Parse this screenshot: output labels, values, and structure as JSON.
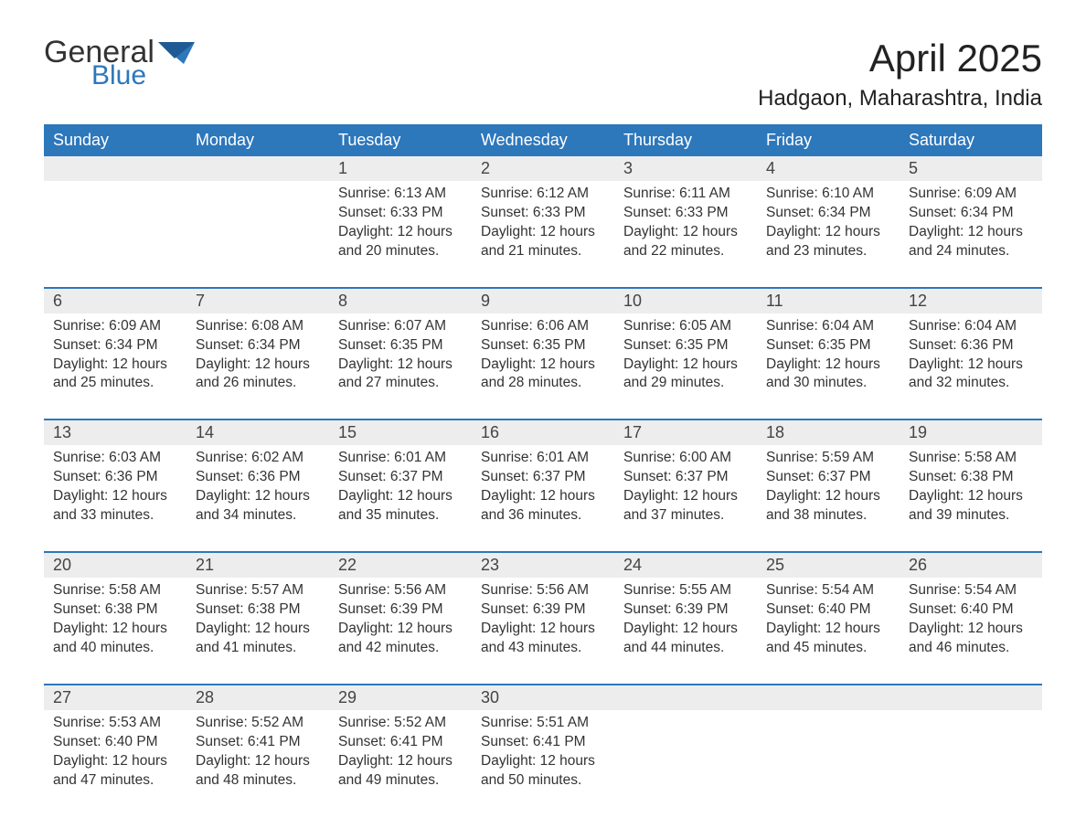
{
  "brand": {
    "word1": "General",
    "word2": "Blue"
  },
  "title": {
    "month": "April 2025",
    "location": "Hadgaon, Maharashtra, India"
  },
  "colors": {
    "header_bg": "#2d77bb",
    "header_text": "#ffffff",
    "daynum_bg": "#ededed",
    "week_divider": "#2d77bb",
    "text": "#333333",
    "logo_blue": "#2d77bb"
  },
  "dayNames": [
    "Sunday",
    "Monday",
    "Tuesday",
    "Wednesday",
    "Thursday",
    "Friday",
    "Saturday"
  ],
  "weeks": [
    [
      null,
      null,
      {
        "n": "1",
        "sunrise": "6:13 AM",
        "sunset": "6:33 PM",
        "daylight": "12 hours and 20 minutes."
      },
      {
        "n": "2",
        "sunrise": "6:12 AM",
        "sunset": "6:33 PM",
        "daylight": "12 hours and 21 minutes."
      },
      {
        "n": "3",
        "sunrise": "6:11 AM",
        "sunset": "6:33 PM",
        "daylight": "12 hours and 22 minutes."
      },
      {
        "n": "4",
        "sunrise": "6:10 AM",
        "sunset": "6:34 PM",
        "daylight": "12 hours and 23 minutes."
      },
      {
        "n": "5",
        "sunrise": "6:09 AM",
        "sunset": "6:34 PM",
        "daylight": "12 hours and 24 minutes."
      }
    ],
    [
      {
        "n": "6",
        "sunrise": "6:09 AM",
        "sunset": "6:34 PM",
        "daylight": "12 hours and 25 minutes."
      },
      {
        "n": "7",
        "sunrise": "6:08 AM",
        "sunset": "6:34 PM",
        "daylight": "12 hours and 26 minutes."
      },
      {
        "n": "8",
        "sunrise": "6:07 AM",
        "sunset": "6:35 PM",
        "daylight": "12 hours and 27 minutes."
      },
      {
        "n": "9",
        "sunrise": "6:06 AM",
        "sunset": "6:35 PM",
        "daylight": "12 hours and 28 minutes."
      },
      {
        "n": "10",
        "sunrise": "6:05 AM",
        "sunset": "6:35 PM",
        "daylight": "12 hours and 29 minutes."
      },
      {
        "n": "11",
        "sunrise": "6:04 AM",
        "sunset": "6:35 PM",
        "daylight": "12 hours and 30 minutes."
      },
      {
        "n": "12",
        "sunrise": "6:04 AM",
        "sunset": "6:36 PM",
        "daylight": "12 hours and 32 minutes."
      }
    ],
    [
      {
        "n": "13",
        "sunrise": "6:03 AM",
        "sunset": "6:36 PM",
        "daylight": "12 hours and 33 minutes."
      },
      {
        "n": "14",
        "sunrise": "6:02 AM",
        "sunset": "6:36 PM",
        "daylight": "12 hours and 34 minutes."
      },
      {
        "n": "15",
        "sunrise": "6:01 AM",
        "sunset": "6:37 PM",
        "daylight": "12 hours and 35 minutes."
      },
      {
        "n": "16",
        "sunrise": "6:01 AM",
        "sunset": "6:37 PM",
        "daylight": "12 hours and 36 minutes."
      },
      {
        "n": "17",
        "sunrise": "6:00 AM",
        "sunset": "6:37 PM",
        "daylight": "12 hours and 37 minutes."
      },
      {
        "n": "18",
        "sunrise": "5:59 AM",
        "sunset": "6:37 PM",
        "daylight": "12 hours and 38 minutes."
      },
      {
        "n": "19",
        "sunrise": "5:58 AM",
        "sunset": "6:38 PM",
        "daylight": "12 hours and 39 minutes."
      }
    ],
    [
      {
        "n": "20",
        "sunrise": "5:58 AM",
        "sunset": "6:38 PM",
        "daylight": "12 hours and 40 minutes."
      },
      {
        "n": "21",
        "sunrise": "5:57 AM",
        "sunset": "6:38 PM",
        "daylight": "12 hours and 41 minutes."
      },
      {
        "n": "22",
        "sunrise": "5:56 AM",
        "sunset": "6:39 PM",
        "daylight": "12 hours and 42 minutes."
      },
      {
        "n": "23",
        "sunrise": "5:56 AM",
        "sunset": "6:39 PM",
        "daylight": "12 hours and 43 minutes."
      },
      {
        "n": "24",
        "sunrise": "5:55 AM",
        "sunset": "6:39 PM",
        "daylight": "12 hours and 44 minutes."
      },
      {
        "n": "25",
        "sunrise": "5:54 AM",
        "sunset": "6:40 PM",
        "daylight": "12 hours and 45 minutes."
      },
      {
        "n": "26",
        "sunrise": "5:54 AM",
        "sunset": "6:40 PM",
        "daylight": "12 hours and 46 minutes."
      }
    ],
    [
      {
        "n": "27",
        "sunrise": "5:53 AM",
        "sunset": "6:40 PM",
        "daylight": "12 hours and 47 minutes."
      },
      {
        "n": "28",
        "sunrise": "5:52 AM",
        "sunset": "6:41 PM",
        "daylight": "12 hours and 48 minutes."
      },
      {
        "n": "29",
        "sunrise": "5:52 AM",
        "sunset": "6:41 PM",
        "daylight": "12 hours and 49 minutes."
      },
      {
        "n": "30",
        "sunrise": "5:51 AM",
        "sunset": "6:41 PM",
        "daylight": "12 hours and 50 minutes."
      },
      null,
      null,
      null
    ]
  ],
  "labels": {
    "sunrise": "Sunrise: ",
    "sunset": "Sunset: ",
    "daylight": "Daylight: "
  }
}
